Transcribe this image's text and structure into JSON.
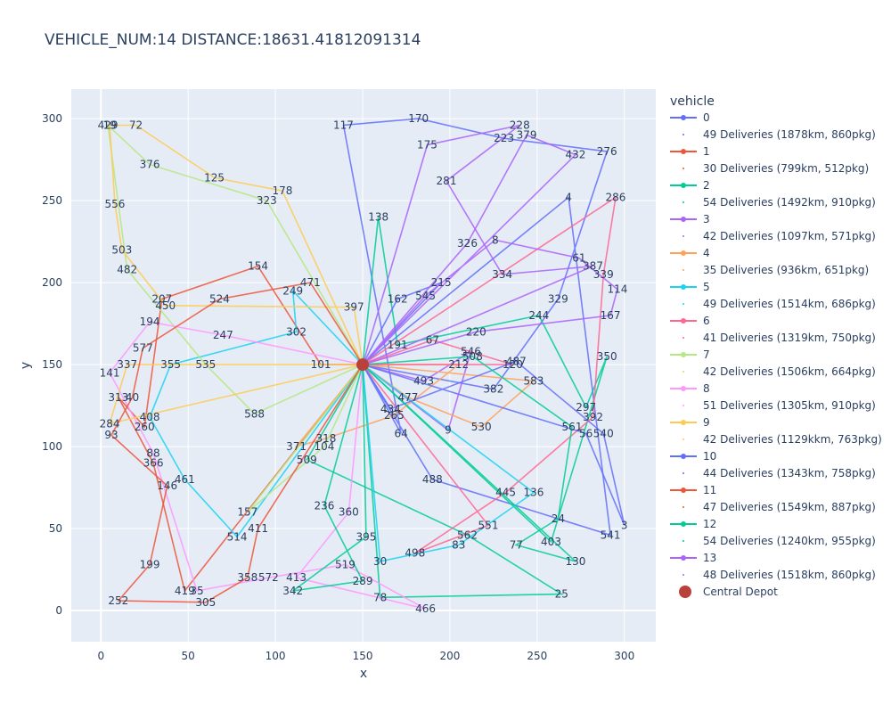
{
  "chart_data": {
    "type": "line",
    "title": "VEHICLE_NUM:14 DISTANCE:18631.41812091314",
    "xlabel": "x",
    "ylabel": "y",
    "xlim": [
      -17,
      318
    ],
    "ylim": [
      -19,
      318
    ],
    "xticks": [
      0,
      50,
      100,
      150,
      200,
      250,
      300
    ],
    "yticks": [
      0,
      50,
      100,
      150,
      200,
      250,
      300
    ],
    "grid": true,
    "legend_title": "vehicle",
    "legend_placement": "right",
    "depot": {
      "name": "Central Depot",
      "x": 150,
      "y": 150,
      "color": "#b8413a"
    },
    "series": [
      {
        "name": "0",
        "desc": "49 Deliveries (1878km, 860pkg)",
        "color": "#636efa",
        "points": [
          [
            150,
            150
          ],
          [
            172,
            108
          ],
          [
            139,
            296
          ],
          [
            182,
            300
          ],
          [
            231,
            288
          ],
          [
            290,
            280
          ],
          [
            262,
            190
          ],
          [
            225,
            135
          ],
          [
            150,
            150
          ],
          [
            190,
            80
          ],
          [
            292,
            46
          ],
          [
            268,
            252
          ],
          [
            150,
            150
          ]
        ],
        "labels": [
          [
            "305",
            275
          ],
          [
            "520",
            297
          ],
          [
            "16",
            283
          ],
          [
            "413",
            293
          ],
          [
            "255",
            281
          ]
        ]
      },
      {
        "name": "1",
        "desc": "30 Deliveries (799km, 512pkg)",
        "color": "#ef553b",
        "points": [
          [
            150,
            150
          ],
          [
            126,
            150
          ],
          [
            90,
            210
          ],
          [
            35,
            190
          ],
          [
            25,
            112
          ],
          [
            10,
            130
          ],
          [
            30,
            90
          ],
          [
            48,
            12
          ],
          [
            150,
            150
          ]
        ],
        "labels": [
          [
            "466",
            302
          ],
          [
            "415",
            301
          ],
          [
            "341",
            307
          ],
          [
            "12",
            309
          ]
        ]
      },
      {
        "name": "2",
        "desc": "54 Deliveries (1492km, 910pkg)",
        "color": "#00cc96",
        "points": [
          [
            150,
            150
          ],
          [
            159,
            240
          ],
          [
            170,
            162
          ],
          [
            251,
            180
          ],
          [
            278,
            124
          ],
          [
            290,
            155
          ],
          [
            258,
            42
          ],
          [
            150,
            150
          ],
          [
            118,
            92
          ],
          [
            210,
            46
          ],
          [
            264,
            10
          ],
          [
            160,
            8
          ],
          [
            150,
            150
          ]
        ],
        "labels": [
          [
            "588",
            313
          ],
          [
            "24",
            311
          ],
          [
            "73",
            312
          ],
          [
            "15",
            310
          ]
        ]
      },
      {
        "name": "3",
        "desc": "42 Deliveries (1097km, 571pkg)",
        "color": "#ab63fa",
        "points": [
          [
            150,
            150
          ],
          [
            187,
            284
          ],
          [
            240,
            296
          ],
          [
            198,
            262
          ],
          [
            230,
            205
          ],
          [
            282,
            210
          ],
          [
            150,
            150
          ],
          [
            185,
            140
          ],
          [
            212,
            158
          ],
          [
            199,
            110
          ],
          [
            150,
            150
          ]
        ],
        "labels": [
          [
            "221",
            322
          ],
          [
            "235",
            321
          ],
          [
            "6",
            317
          ],
          [
            "409",
            316
          ]
        ]
      },
      {
        "name": "4",
        "desc": "35 Deliveries (936km, 651pkg)",
        "color": "#ffa15a",
        "points": [
          [
            150,
            150
          ],
          [
            205,
            150
          ],
          [
            168,
            119
          ],
          [
            129,
            105
          ],
          [
            112,
            100
          ],
          [
            150,
            150
          ],
          [
            176,
            130
          ],
          [
            218,
            112
          ],
          [
            248,
            140
          ],
          [
            150,
            150
          ]
        ],
        "labels": [
          [
            "376",
            328
          ],
          [
            "440",
            324
          ],
          [
            "95",
            327
          ]
        ]
      },
      {
        "name": "5",
        "desc": "49 Deliveries (1514km, 686pkg)",
        "color": "#19d3f3",
        "points": [
          [
            150,
            150
          ],
          [
            110,
            195
          ],
          [
            112,
            170
          ],
          [
            40,
            150
          ],
          [
            28,
            118
          ],
          [
            48,
            80
          ],
          [
            78,
            45
          ],
          [
            150,
            150
          ],
          [
            160,
            30
          ],
          [
            205,
            40
          ],
          [
            248,
            72
          ],
          [
            150,
            150
          ]
        ],
        "labels": [
          [
            "31",
            333
          ],
          [
            "407",
            331
          ],
          [
            "330",
            332
          ]
        ]
      },
      {
        "name": "6",
        "desc": "41 Deliveries (1319km, 750pkg)",
        "color": "#ff6692",
        "points": [
          [
            150,
            150
          ],
          [
            295,
            252
          ],
          [
            288,
            205
          ],
          [
            282,
            118
          ],
          [
            232,
            72
          ],
          [
            180,
            35
          ],
          [
            222,
            52
          ],
          [
            150,
            150
          ],
          [
            190,
            165
          ],
          [
            236,
            150
          ],
          [
            150,
            150
          ]
        ],
        "labels": [
          [
            "163",
            338
          ],
          [
            "201",
            337
          ],
          [
            "100",
            336
          ]
        ]
      },
      {
        "name": "7",
        "desc": "42 Deliveries (1506km, 664pkg)",
        "color": "#b6e880",
        "points": [
          [
            150,
            150
          ],
          [
            95,
            250
          ],
          [
            28,
            272
          ],
          [
            4,
            296
          ],
          [
            15,
            208
          ],
          [
            60,
            150
          ],
          [
            88,
            120
          ],
          [
            150,
            150
          ],
          [
            128,
            100
          ],
          [
            84,
            60
          ],
          [
            150,
            150
          ]
        ],
        "labels": [
          [
            "372",
            342
          ],
          [
            "497",
            343
          ]
        ]
      },
      {
        "name": "8",
        "desc": "51 Deliveries (1305km, 910pkg)",
        "color": "#ff97ff",
        "points": [
          [
            150,
            150
          ],
          [
            142,
            60
          ],
          [
            112,
            20
          ],
          [
            186,
            1
          ],
          [
            140,
            28
          ],
          [
            96,
            20
          ],
          [
            55,
            12
          ],
          [
            30,
            96
          ],
          [
            5,
            145
          ],
          [
            28,
            176
          ],
          [
            70,
            168
          ],
          [
            150,
            150
          ]
        ],
        "labels": [
          [
            "316",
            348
          ],
          [
            "378",
            346
          ]
        ]
      },
      {
        "name": "9",
        "desc": "42 Deliveries (1129kkm, 763pkg)",
        "color": "#fecb52",
        "points": [
          [
            150,
            150
          ],
          [
            145,
            185
          ],
          [
            37,
            186
          ],
          [
            12,
            220
          ],
          [
            8,
            248
          ],
          [
            5,
            296
          ],
          [
            20,
            296
          ],
          [
            65,
            264
          ],
          [
            104,
            256
          ],
          [
            150,
            150
          ],
          [
            5,
            114
          ],
          [
            15,
            150
          ],
          [
            150,
            150
          ]
        ],
        "labels": [
          [
            "583",
            352
          ],
          [
            "420",
            353
          ]
        ]
      },
      {
        "name": "10",
        "desc": "44 Deliveries (1343km, 758pkg)",
        "color": "#636efa",
        "points": [
          [
            150,
            150
          ],
          [
            166,
            123
          ],
          [
            238,
            152
          ],
          [
            288,
            108
          ],
          [
            300,
            52
          ],
          [
            278,
            108
          ],
          [
            150,
            150
          ],
          [
            170,
            190
          ],
          [
            195,
            200
          ],
          [
            150,
            150
          ]
        ],
        "labels": [
          [
            "405",
            357
          ],
          [
            "561",
            358
          ]
        ]
      },
      {
        "name": "11",
        "desc": "47 Deliveries (1549km, 887pkg)",
        "color": "#ef553b",
        "points": [
          [
            150,
            150
          ],
          [
            120,
            200
          ],
          [
            68,
            190
          ],
          [
            24,
            160
          ],
          [
            18,
            130
          ],
          [
            6,
            107
          ],
          [
            38,
            76
          ],
          [
            28,
            28
          ],
          [
            10,
            6
          ],
          [
            60,
            5
          ],
          [
            84,
            20
          ],
          [
            90,
            50
          ],
          [
            150,
            150
          ]
        ],
        "labels": [
          [
            "107",
            362
          ],
          [
            "502",
            361
          ]
        ]
      },
      {
        "name": "12",
        "desc": "54 Deliveries (1240km, 955pkg)",
        "color": "#00cc96",
        "points": [
          [
            150,
            150
          ],
          [
            213,
            155
          ],
          [
            270,
            112
          ],
          [
            262,
            56
          ],
          [
            238,
            40
          ],
          [
            272,
            30
          ],
          [
            150,
            150
          ],
          [
            128,
            64
          ],
          [
            150,
            18
          ],
          [
            110,
            12
          ],
          [
            152,
            45
          ],
          [
            150,
            150
          ]
        ],
        "labels": [
          [
            "33",
            368
          ],
          [
            "588",
            367
          ]
        ]
      },
      {
        "name": "13",
        "desc": "48 Deliveries (1518km, 860pkg)",
        "color": "#ab63fa",
        "points": [
          [
            150,
            150
          ],
          [
            186,
            192
          ],
          [
            226,
            226
          ],
          [
            274,
            215
          ],
          [
            296,
            196
          ],
          [
            292,
            180
          ],
          [
            215,
            170
          ],
          [
            150,
            150
          ],
          [
            210,
            224
          ],
          [
            244,
            290
          ],
          [
            272,
            278
          ],
          [
            150,
            150
          ]
        ],
        "labels": [
          [
            "262",
            372
          ],
          [
            "380",
            373
          ]
        ]
      }
    ]
  }
}
